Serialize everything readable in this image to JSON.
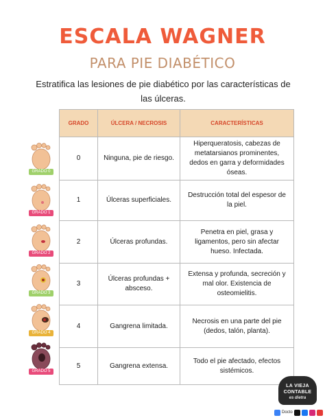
{
  "header": {
    "title": "ESCALA WAGNER",
    "subtitle": "PARA PIE DIABÉTICO",
    "intro": "Estratifica las lesiones de pie diabético por las características de las úlceras."
  },
  "table": {
    "headers": [
      "GRADO",
      "ÚLCERA / NECROSIS",
      "CARACTERÍSTICAS"
    ],
    "rows": [
      {
        "grade": "0",
        "lesion": "Ninguna, pie de riesgo.",
        "features": "Hiperqueratosis, cabezas de metatarsianos prominentes, dedos en garra y deformidades óseas."
      },
      {
        "grade": "1",
        "lesion": "Úlceras superficiales.",
        "features": "Destrucción total del espesor de la piel."
      },
      {
        "grade": "2",
        "lesion": "Úlceras profundas.",
        "features": "Penetra en piel, grasa y ligamentos, pero sin afectar hueso. Infectada."
      },
      {
        "grade": "3",
        "lesion": "Úlceras profundas + absceso.",
        "features": "Extensa y profunda, secreción y mal olor. Existencia de osteomielitis."
      },
      {
        "grade": "4",
        "lesion": "Gangrena limitada.",
        "features": "Necrosis en una parte del pie (dedos, talón, planta)."
      },
      {
        "grade": "5",
        "lesion": "Gangrena extensa.",
        "features": "Todo el pie afectado, efectos sistémicos."
      }
    ]
  },
  "feet": [
    {
      "label": "GRADO 0",
      "skin": "#f2c196",
      "lesion": "none"
    },
    {
      "label": "GRADO 1",
      "skin": "#f2c196",
      "lesion": "superficial"
    },
    {
      "label": "GRADO 2",
      "skin": "#f2c196",
      "lesion": "deep"
    },
    {
      "label": "GRADO 3",
      "skin": "#f2c196",
      "lesion": "abscess"
    },
    {
      "label": "GRADO 4",
      "skin": "#f2c196",
      "lesion": "gangrene-limited"
    },
    {
      "label": "GRADO 5",
      "skin": "#8a4a5a",
      "lesion": "gangrene-extensive"
    }
  ],
  "branding": {
    "logo_line1": "LA VIEJA",
    "logo_line2": "CONTABLE",
    "logo_line3": "es dietra",
    "docto": "Docto",
    "social_icons": [
      "tiktok-icon",
      "facebook-icon",
      "instagram-icon",
      "youtube-icon"
    ]
  },
  "colors": {
    "title": "#ef5b3a",
    "subtitle": "#c28f6a",
    "header_bg": "#f4d9b5",
    "header_text": "#d6482b"
  }
}
